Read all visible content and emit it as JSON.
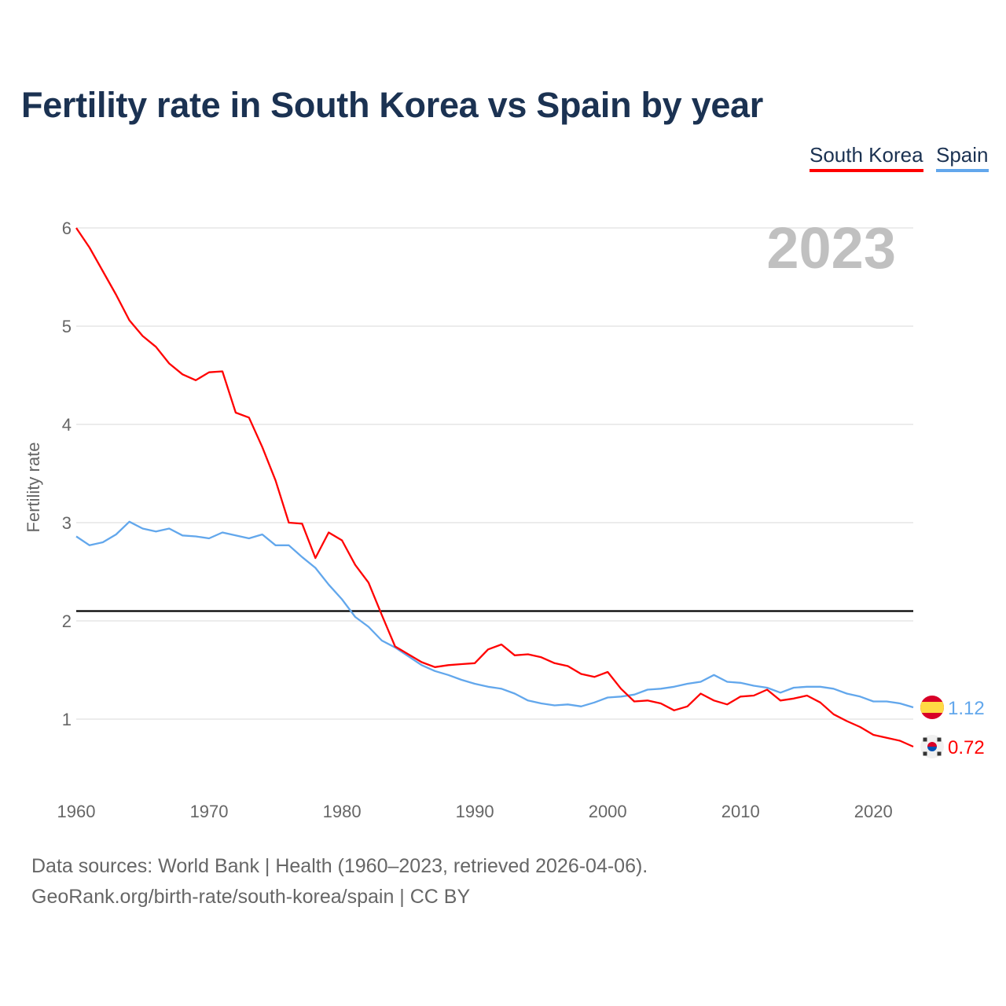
{
  "chart_data": {
    "type": "line",
    "title": "Fertility rate in South Korea vs Spain by year",
    "xlabel": "",
    "ylabel": "Fertility rate",
    "xlim": [
      1960,
      2023
    ],
    "ylim": [
      0.4,
      6.3
    ],
    "x_ticks": [
      "1960",
      "1970",
      "1980",
      "1990",
      "2000",
      "2010",
      "2020"
    ],
    "y_ticks": [
      "1",
      "2",
      "3",
      "4",
      "5",
      "6"
    ],
    "grid": true,
    "legend_position": "top-right",
    "year_label": "2023",
    "reference_line": 2.1,
    "x": [
      1960,
      1961,
      1962,
      1963,
      1964,
      1965,
      1966,
      1967,
      1968,
      1969,
      1970,
      1971,
      1972,
      1973,
      1974,
      1975,
      1976,
      1977,
      1978,
      1979,
      1980,
      1981,
      1982,
      1983,
      1984,
      1985,
      1986,
      1987,
      1988,
      1989,
      1990,
      1991,
      1992,
      1993,
      1994,
      1995,
      1996,
      1997,
      1998,
      1999,
      2000,
      2001,
      2002,
      2003,
      2004,
      2005,
      2006,
      2007,
      2008,
      2009,
      2010,
      2011,
      2012,
      2013,
      2014,
      2015,
      2016,
      2017,
      2018,
      2019,
      2020,
      2021,
      2022,
      2023
    ],
    "series": [
      {
        "name": "South Korea",
        "color": "#ff0000",
        "end_label": "0.72",
        "flag": "south-korea-flag",
        "values": [
          6.0,
          5.8,
          5.56,
          5.32,
          5.06,
          4.9,
          4.79,
          4.62,
          4.51,
          4.45,
          4.53,
          4.54,
          4.12,
          4.07,
          3.77,
          3.43,
          3.0,
          2.99,
          2.64,
          2.9,
          2.82,
          2.57,
          2.39,
          2.06,
          1.74,
          1.66,
          1.58,
          1.53,
          1.55,
          1.56,
          1.57,
          1.71,
          1.76,
          1.65,
          1.66,
          1.63,
          1.57,
          1.54,
          1.46,
          1.43,
          1.48,
          1.31,
          1.18,
          1.19,
          1.16,
          1.09,
          1.13,
          1.26,
          1.19,
          1.15,
          1.23,
          1.24,
          1.3,
          1.19,
          1.21,
          1.24,
          1.17,
          1.05,
          0.98,
          0.92,
          0.84,
          0.81,
          0.78,
          0.72
        ]
      },
      {
        "name": "Spain",
        "color": "#62a7ec",
        "end_label": "1.12",
        "flag": "spain-flag",
        "values": [
          2.86,
          2.77,
          2.8,
          2.88,
          3.01,
          2.94,
          2.91,
          2.94,
          2.87,
          2.86,
          2.84,
          2.9,
          2.87,
          2.84,
          2.88,
          2.77,
          2.77,
          2.65,
          2.54,
          2.37,
          2.22,
          2.04,
          1.94,
          1.8,
          1.73,
          1.64,
          1.55,
          1.49,
          1.45,
          1.4,
          1.36,
          1.33,
          1.31,
          1.26,
          1.19,
          1.16,
          1.14,
          1.15,
          1.13,
          1.17,
          1.22,
          1.23,
          1.25,
          1.3,
          1.31,
          1.33,
          1.36,
          1.38,
          1.45,
          1.38,
          1.37,
          1.34,
          1.32,
          1.27,
          1.32,
          1.33,
          1.33,
          1.31,
          1.26,
          1.23,
          1.18,
          1.18,
          1.16,
          1.12
        ]
      }
    ]
  },
  "footer": {
    "line1": "Data sources: World Bank | Health (1960–2023, retrieved 2026-04-06).",
    "line2": "GeoRank.org/birth-rate/south-korea/spain | CC BY"
  }
}
